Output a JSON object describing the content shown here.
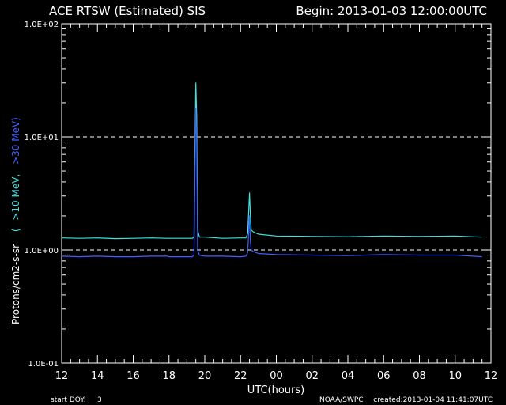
{
  "chart_data": {
    "type": "line",
    "title": "ACE RTSW (Estimated) SIS",
    "begin_label": "Begin: 2013-01-03 12:00:00UTC",
    "xlabel": "UTC(hours)",
    "ylabel_main": "Protons/cm2-s-sr",
    "ylabel_open": "(",
    "ylabel_gt10": ">10 MeV,",
    "ylabel_gt30": ">30 MeV)",
    "footer_left": "start DOY:     3",
    "footer_org": "NOAA/SWPC",
    "footer_created": "created:2013-01-04 11:41:07UTC",
    "y_scale": "log",
    "ylim": [
      0.1,
      100
    ],
    "xlim": [
      12,
      36
    ],
    "x_ticks": [
      12,
      14,
      16,
      18,
      20,
      22,
      24,
      26,
      28,
      30,
      32,
      34,
      36
    ],
    "x_tick_labels": [
      "12",
      "14",
      "16",
      "18",
      "20",
      "22",
      "00",
      "02",
      "04",
      "06",
      "08",
      "10",
      "12"
    ],
    "y_ticks": [
      0.1,
      1,
      10,
      100
    ],
    "y_tick_labels": [
      "1.0E-01",
      "1.0E+00",
      "1.0E+01",
      "1.0E+02"
    ],
    "reference_lines": [
      1,
      10
    ],
    "colors": {
      "gt10": "#40e0e0",
      "gt30": "#4060ff",
      "grid": "#ffffff",
      "background": "#000000"
    },
    "series": [
      {
        "key": "gt10",
        "x": [
          12.0,
          13.0,
          14.0,
          15.0,
          16.0,
          17.0,
          17.9,
          18.0,
          19.0,
          19.3,
          19.4,
          19.45,
          19.5,
          19.55,
          19.6,
          19.7,
          19.8,
          20.0,
          21.0,
          22.0,
          22.3,
          22.4,
          22.5,
          22.55,
          22.6,
          22.7,
          23.0,
          24.0,
          26.0,
          28.0,
          30.0,
          32.0,
          34.0,
          35.5
        ],
        "y": [
          1.28,
          1.27,
          1.28,
          1.26,
          1.27,
          1.28,
          1.27,
          1.27,
          1.27,
          1.27,
          1.3,
          8.0,
          30.0,
          15.0,
          1.5,
          1.3,
          1.3,
          1.3,
          1.27,
          1.28,
          1.28,
          1.4,
          3.2,
          2.0,
          1.5,
          1.45,
          1.38,
          1.33,
          1.32,
          1.31,
          1.33,
          1.32,
          1.33,
          1.3
        ]
      },
      {
        "key": "gt30",
        "x": [
          12.0,
          13.0,
          14.0,
          15.0,
          16.0,
          17.0,
          17.9,
          18.0,
          19.0,
          19.3,
          19.4,
          19.45,
          19.5,
          19.55,
          19.6,
          19.7,
          19.8,
          20.0,
          21.0,
          22.0,
          22.3,
          22.4,
          22.5,
          22.55,
          22.6,
          22.7,
          23.0,
          24.0,
          26.0,
          28.0,
          30.0,
          32.0,
          34.0,
          35.5
        ],
        "y": [
          0.88,
          0.87,
          0.88,
          0.87,
          0.87,
          0.88,
          0.88,
          0.87,
          0.87,
          0.87,
          0.9,
          5.0,
          18.0,
          9.0,
          1.0,
          0.9,
          0.89,
          0.88,
          0.88,
          0.87,
          0.88,
          0.95,
          2.0,
          1.2,
          1.0,
          0.97,
          0.93,
          0.91,
          0.9,
          0.89,
          0.91,
          0.9,
          0.9,
          0.87
        ]
      }
    ]
  }
}
